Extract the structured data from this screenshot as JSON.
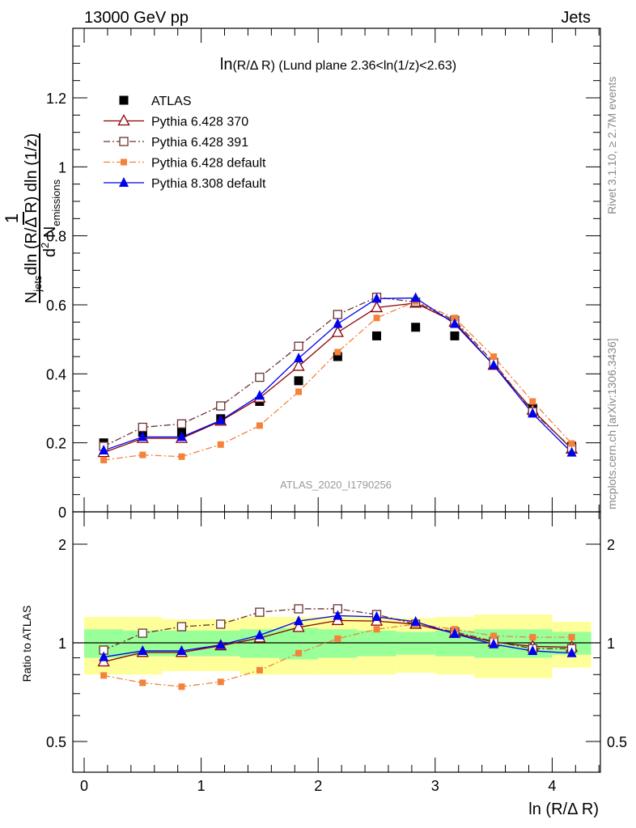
{
  "header": {
    "left": "13000 GeV pp",
    "right": "Jets"
  },
  "side_labels": {
    "rivet": "Rivet 3.1.10, ≥ 2.7M events",
    "mcplots": "mcplots.cern.ch [arXiv:1306.3436]"
  },
  "chart_data": {
    "type": "scatter",
    "title_prefix": "ln",
    "title_var": "(R/Δ R)",
    "title_rest": " (Lund plane 2.36<ln(1/z)<2.63)",
    "watermark": "ATLAS_2020_I1790256",
    "xlabel": "ln (R/Δ R)",
    "ylabel_main": {
      "one": "1",
      "n_jets": "N",
      "jets_sub": "jets",
      "den_rest": "dln (R/Δ R) dln (1/z)",
      "d2": "d",
      "sup": "2",
      "n_em": " N",
      "em_sub": "emissions"
    },
    "ylabel_ratio": "Ratio to ATLAS",
    "xlim": [
      -0.1,
      4.4
    ],
    "ylim_main": [
      0,
      1.35
    ],
    "ylim_ratio": [
      0.38,
      2.25
    ],
    "log_ratio": true,
    "x_ticks": [
      "0",
      "1",
      "2",
      "3",
      "4"
    ],
    "y_ticks_main": [
      "0",
      "0.2",
      "0.4",
      "0.6",
      "0.8",
      "1",
      "1.2"
    ],
    "y_ticks_ratio": [
      "0.5",
      "1",
      "2"
    ],
    "x": [
      0.167,
      0.5,
      0.833,
      1.167,
      1.5,
      1.833,
      2.167,
      2.5,
      2.833,
      3.167,
      3.5,
      3.833,
      4.167
    ],
    "bin_edges": [
      0,
      0.333,
      0.667,
      1.0,
      1.333,
      1.667,
      2.0,
      2.333,
      2.667,
      3.0,
      3.333,
      3.667,
      4.0,
      4.333
    ],
    "band_inner": [
      0.1,
      0.09,
      0.09,
      0.09,
      0.1,
      0.11,
      0.1,
      0.09,
      0.08,
      0.09,
      0.1,
      0.1,
      0.08
    ],
    "band_outer": [
      0.2,
      0.2,
      0.18,
      0.18,
      0.2,
      0.2,
      0.2,
      0.2,
      0.19,
      0.2,
      0.22,
      0.22,
      0.16
    ],
    "series": [
      {
        "name": "ATLAS",
        "color": "#000000",
        "marker": "square-filled",
        "line": "none",
        "values": [
          0.2,
          0.23,
          0.23,
          0.27,
          0.32,
          0.38,
          0.45,
          0.51,
          0.535,
          0.51,
          0.43,
          0.3,
          0.19
        ]
      },
      {
        "name": "Pythia 6.428 370",
        "color": "#8b0000",
        "marker": "triangle-open",
        "line": "solid",
        "values": [
          0.172,
          0.213,
          0.213,
          0.263,
          0.33,
          0.422,
          0.52,
          0.592,
          0.605,
          0.55,
          0.425,
          0.295,
          0.182
        ]
      },
      {
        "name": "Pythia 6.428 391",
        "color": "#6b3030",
        "marker": "square-open",
        "line": "dashdot",
        "values": [
          0.19,
          0.245,
          0.255,
          0.307,
          0.39,
          0.48,
          0.572,
          0.622,
          0.608,
          0.555,
          0.433,
          0.29,
          0.185
        ]
      },
      {
        "name": "Pythia 6.428 default",
        "color": "#f4823a",
        "marker": "square-filled-small",
        "line": "dashdot",
        "values": [
          0.15,
          0.165,
          0.16,
          0.195,
          0.25,
          0.348,
          0.463,
          0.562,
          0.61,
          0.562,
          0.45,
          0.32,
          0.198
        ]
      },
      {
        "name": "Pythia 8.308 default",
        "color": "#0000ee",
        "marker": "triangle-filled",
        "line": "solid",
        "values": [
          0.178,
          0.217,
          0.217,
          0.265,
          0.337,
          0.445,
          0.545,
          0.618,
          0.62,
          0.545,
          0.425,
          0.285,
          0.172
        ]
      }
    ],
    "ratios": {
      "Pythia 6.428 370": [
        0.875,
        0.935,
        0.935,
        0.98,
        1.035,
        1.115,
        1.17,
        1.165,
        1.14,
        1.07,
        1.005,
        0.975,
        0.97
      ],
      "Pythia 6.428 391": [
        0.95,
        1.07,
        1.12,
        1.14,
        1.24,
        1.27,
        1.27,
        1.22,
        1.14,
        1.08,
        1.01,
        0.96,
        0.96
      ],
      "Pythia 6.428 default": [
        0.795,
        0.755,
        0.735,
        0.76,
        0.825,
        0.93,
        1.03,
        1.1,
        1.14,
        1.1,
        1.05,
        1.04,
        1.04
      ],
      "Pythia 8.308 default": [
        0.905,
        0.945,
        0.945,
        0.985,
        1.055,
        1.165,
        1.21,
        1.2,
        1.16,
        1.065,
        0.99,
        0.945,
        0.93
      ]
    }
  }
}
